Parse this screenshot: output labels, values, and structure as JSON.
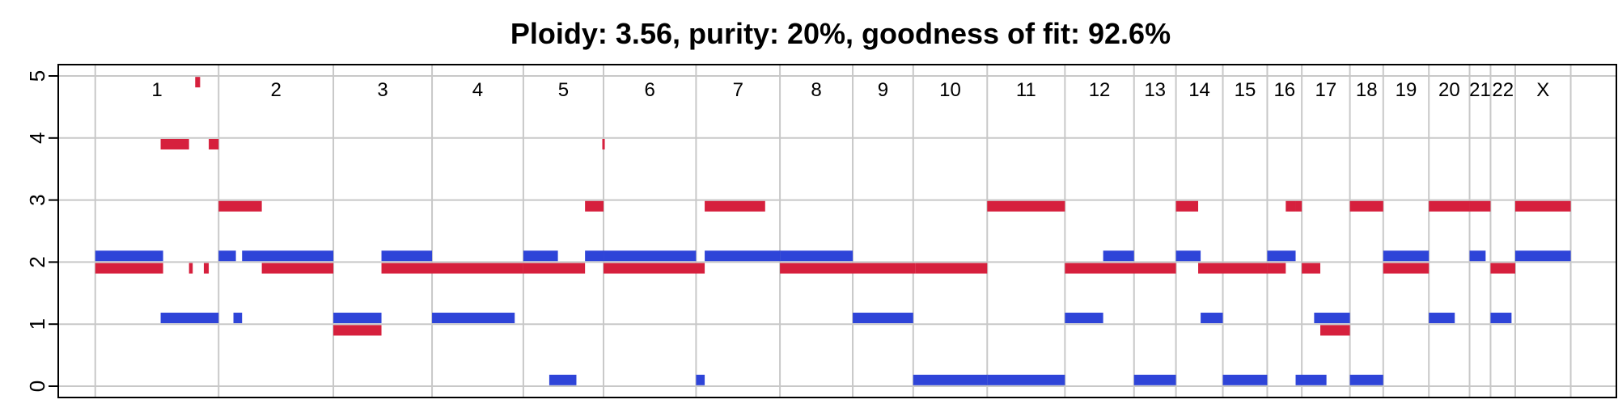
{
  "chart_data": {
    "type": "segment",
    "title": "Ploidy: 3.56, purity: 20%, goodness of fit: 92.6%",
    "xlabel": "",
    "ylabel": "",
    "ylim": [
      0,
      5
    ],
    "yticks": [
      0,
      1,
      2,
      3,
      4,
      5
    ],
    "grid": true,
    "colors": {
      "major": "#d6203d",
      "minor": "#2e44d8",
      "grid": "#c8c8c8"
    },
    "chromosomes": [
      {
        "label": "1",
        "start": 0,
        "end": 1.0
      },
      {
        "label": "2",
        "start": 1.0,
        "end": 1.93
      },
      {
        "label": "3",
        "start": 1.93,
        "end": 2.73
      },
      {
        "label": "4",
        "start": 2.73,
        "end": 3.47
      },
      {
        "label": "5",
        "start": 3.47,
        "end": 4.12
      },
      {
        "label": "6",
        "start": 4.12,
        "end": 4.87
      },
      {
        "label": "7",
        "start": 4.87,
        "end": 5.55
      },
      {
        "label": "8",
        "start": 5.55,
        "end": 6.14
      },
      {
        "label": "9",
        "start": 6.14,
        "end": 6.63
      },
      {
        "label": "10",
        "start": 6.63,
        "end": 7.23
      },
      {
        "label": "11",
        "start": 7.23,
        "end": 7.86
      },
      {
        "label": "12",
        "start": 7.86,
        "end": 8.42
      },
      {
        "label": "13",
        "start": 8.42,
        "end": 8.76
      },
      {
        "label": "14",
        "start": 8.76,
        "end": 9.14
      },
      {
        "label": "15",
        "start": 9.14,
        "end": 9.5
      },
      {
        "label": "16",
        "start": 9.5,
        "end": 9.78
      },
      {
        "label": "17",
        "start": 9.78,
        "end": 10.17
      },
      {
        "label": "18",
        "start": 10.17,
        "end": 10.44
      },
      {
        "label": "19",
        "start": 10.44,
        "end": 10.81
      },
      {
        "label": "20",
        "start": 10.81,
        "end": 11.14
      },
      {
        "label": "21",
        "start": 11.14,
        "end": 11.31
      },
      {
        "label": "22",
        "start": 11.31,
        "end": 11.51
      },
      {
        "label": "X",
        "start": 11.51,
        "end": 11.96
      }
    ],
    "xlim": [
      -0.3,
      12.33
    ],
    "series": [
      {
        "name": "",
        "role": "major",
        "segments": [
          [
            0.0,
            0.55,
            1.9
          ],
          [
            0.53,
            0.76,
            3.9
          ],
          [
            0.76,
            0.79,
            1.9
          ],
          [
            0.81,
            0.85,
            4.9
          ],
          [
            0.88,
            0.92,
            1.9
          ],
          [
            0.92,
            1.0,
            3.9
          ],
          [
            1.0,
            1.35,
            2.9
          ],
          [
            1.35,
            1.93,
            1.9
          ],
          [
            1.93,
            2.32,
            0.9
          ],
          [
            2.32,
            3.47,
            1.9
          ],
          [
            3.47,
            3.97,
            1.9
          ],
          [
            3.97,
            4.12,
            2.9
          ],
          [
            4.11,
            4.13,
            3.9
          ],
          [
            4.12,
            4.94,
            1.9
          ],
          [
            4.94,
            5.43,
            2.9
          ],
          [
            5.55,
            6.65,
            1.9
          ],
          [
            6.65,
            7.23,
            1.9
          ],
          [
            7.23,
            7.86,
            2.9
          ],
          [
            7.86,
            8.76,
            1.9
          ],
          [
            8.76,
            8.94,
            2.9
          ],
          [
            8.94,
            9.5,
            1.9
          ],
          [
            9.5,
            9.65,
            1.9
          ],
          [
            9.65,
            9.73,
            2.9
          ],
          [
            9.73,
            9.78,
            2.9
          ],
          [
            9.78,
            9.93,
            1.9
          ],
          [
            9.93,
            10.17,
            0.9
          ],
          [
            10.17,
            10.44,
            2.9
          ],
          [
            10.44,
            10.81,
            1.9
          ],
          [
            10.81,
            11.14,
            2.9
          ],
          [
            11.14,
            11.31,
            2.9
          ],
          [
            11.31,
            11.51,
            1.9
          ],
          [
            11.51,
            11.96,
            2.9
          ]
        ]
      },
      {
        "name": "",
        "role": "minor",
        "segments": [
          [
            0.0,
            0.55,
            2.1
          ],
          [
            0.53,
            1.0,
            1.1
          ],
          [
            1.0,
            1.14,
            2.1
          ],
          [
            1.12,
            1.19,
            1.1
          ],
          [
            1.19,
            1.93,
            2.1
          ],
          [
            1.93,
            2.32,
            1.1
          ],
          [
            2.32,
            2.73,
            2.1
          ],
          [
            2.73,
            3.4,
            1.1
          ],
          [
            3.47,
            3.75,
            2.1
          ],
          [
            3.68,
            3.9,
            0.1
          ],
          [
            3.97,
            4.12,
            2.1
          ],
          [
            4.12,
            4.87,
            2.1
          ],
          [
            4.87,
            4.94,
            0.1
          ],
          [
            4.94,
            5.55,
            2.1
          ],
          [
            5.55,
            6.14,
            2.1
          ],
          [
            6.14,
            6.63,
            1.1
          ],
          [
            6.63,
            7.23,
            0.1
          ],
          [
            7.23,
            7.86,
            0.1
          ],
          [
            7.86,
            8.17,
            1.1
          ],
          [
            8.17,
            8.42,
            2.1
          ],
          [
            8.42,
            8.76,
            0.1
          ],
          [
            8.76,
            8.96,
            2.1
          ],
          [
            8.96,
            9.14,
            1.1
          ],
          [
            9.14,
            9.5,
            0.1
          ],
          [
            9.5,
            9.73,
            2.1
          ],
          [
            9.73,
            9.98,
            0.1
          ],
          [
            9.88,
            10.17,
            1.1
          ],
          [
            10.17,
            10.44,
            0.1
          ],
          [
            10.44,
            10.81,
            2.1
          ],
          [
            10.81,
            11.02,
            1.1
          ],
          [
            11.14,
            11.27,
            2.1
          ],
          [
            11.31,
            11.48,
            1.1
          ],
          [
            11.51,
            11.96,
            2.1
          ]
        ]
      }
    ]
  }
}
